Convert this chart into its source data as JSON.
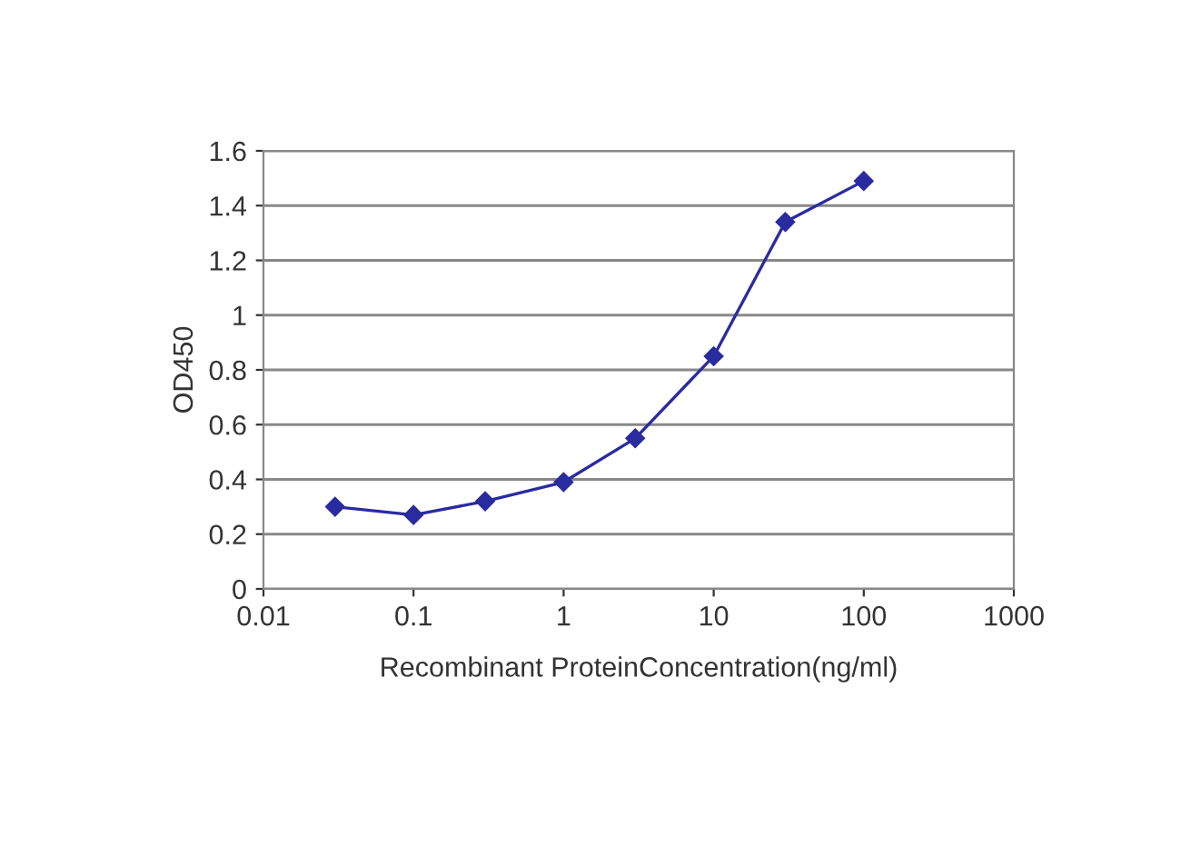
{
  "chart_data": {
    "type": "line",
    "xlabel": "Recombinant ProteinConcentration(ng/ml)",
    "ylabel": "OD450",
    "x": [
      0.03,
      0.1,
      0.3,
      1,
      3,
      10,
      30,
      100
    ],
    "series": [
      {
        "color": "#2b2ba0",
        "values": [
          0.3,
          0.27,
          0.32,
          0.39,
          0.55,
          0.85,
          1.34,
          1.49
        ]
      }
    ],
    "log": "x",
    "xlim": [
      0.01,
      1000
    ],
    "xticks": [
      0.01,
      0.1,
      1,
      10,
      100,
      1000
    ],
    "ylim": [
      0,
      1.6
    ],
    "yticks": [
      0,
      0.2,
      0.4,
      0.6,
      0.8,
      1,
      1.2,
      1.4,
      1.6
    ],
    "grid": "y",
    "marker": "diamond",
    "line_style": "solid"
  }
}
